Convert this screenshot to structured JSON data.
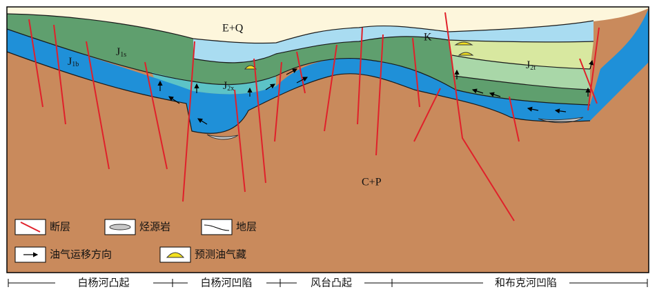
{
  "strata": {
    "eq": "E+Q",
    "k": "K",
    "cp": "C+P",
    "j1b": {
      "base": "J",
      "sub": "1b"
    },
    "j1s": {
      "base": "J",
      "sub": "1s"
    },
    "j2x": {
      "base": "J",
      "sub": "2x"
    },
    "j2t": {
      "base": "J",
      "sub": "2t"
    }
  },
  "legend": {
    "fault": "断层",
    "source_rock": "烃源岩",
    "stratum": "地层",
    "migration": "油气运移方向",
    "reservoir": "预测油气藏"
  },
  "zones": [
    "白杨河凸起",
    "白杨河凹陷",
    "风台凸起",
    "和布克河凹陷"
  ]
}
